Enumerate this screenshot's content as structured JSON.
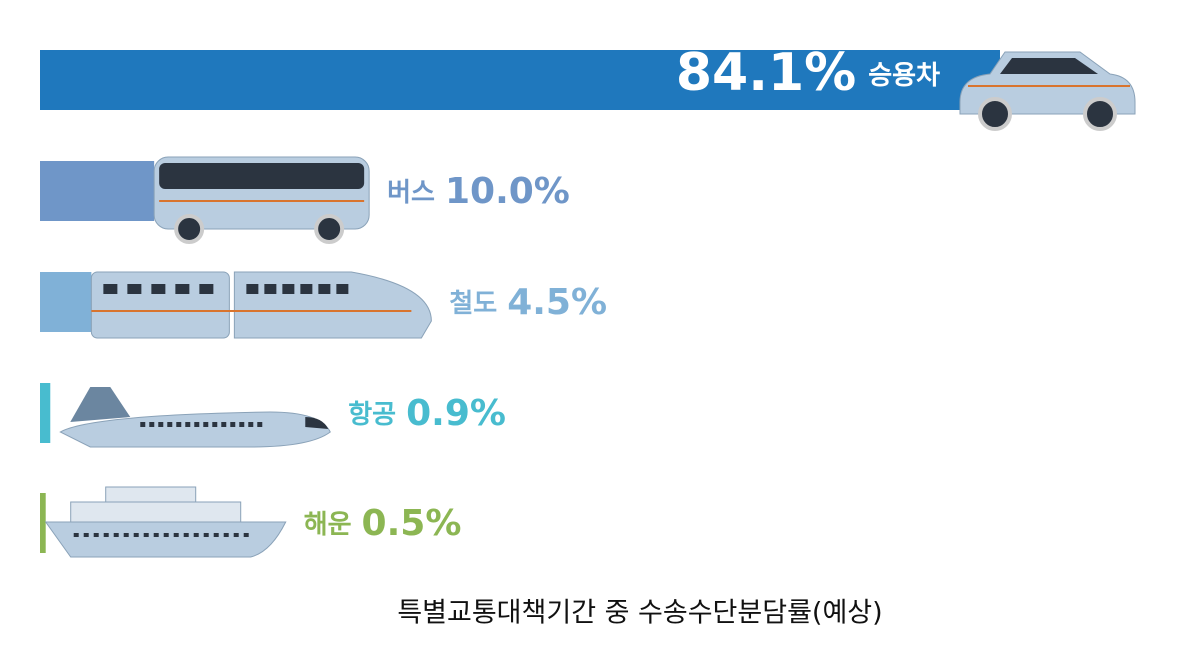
{
  "chart_data": {
    "type": "bar",
    "orientation": "horizontal",
    "title": "특별교통대책기간 중 수송수단분담률(예상)",
    "categories": [
      "승용차",
      "버스",
      "철도",
      "항공",
      "해운"
    ],
    "values": [
      84.1,
      10.0,
      4.5,
      0.9,
      0.5
    ],
    "value_labels": [
      "84.1%",
      "10.0%",
      "4.5%",
      "0.9%",
      "0.5%"
    ],
    "colors": [
      "#1f78bd",
      "#6f96c8",
      "#80b1d7",
      "#48bccf",
      "#8cb653"
    ]
  }
}
